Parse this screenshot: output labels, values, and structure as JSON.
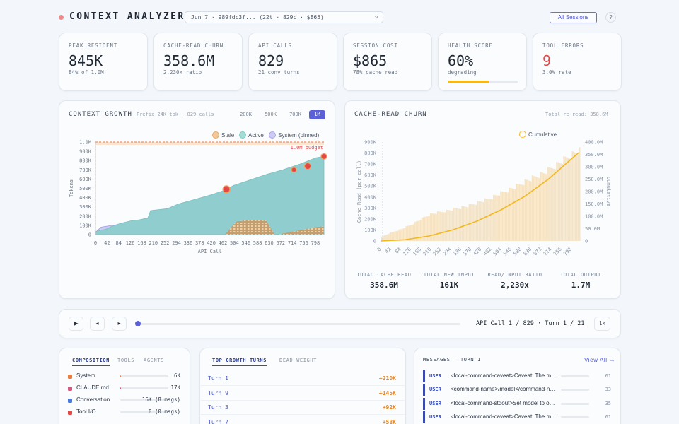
{
  "header": {
    "title": "CONTEXT ANALYZER",
    "session": "Jun 7 · 989fdc3f... (22t · 829c · $865)",
    "all_sessions": "All Sessions",
    "help": "?"
  },
  "stats": [
    {
      "label": "PEAK RESIDENT",
      "value": "845K",
      "sub": "84% of 1.0M"
    },
    {
      "label": "CACHE-READ CHURN",
      "value": "358.6M",
      "sub": "2,230x ratio"
    },
    {
      "label": "API CALLS",
      "value": "829",
      "sub": "21 conv turns"
    },
    {
      "label": "SESSION COST",
      "value": "$865",
      "sub": "78% cache read"
    },
    {
      "label": "HEALTH SCORE",
      "value": "60%",
      "sub": "degrading",
      "progress": 0.6
    },
    {
      "label": "TOOL ERRORS",
      "value": "9",
      "sub": "3.0% rate"
    }
  ],
  "colors": {
    "accent": "#5b5fd8",
    "active_area": "#8ccbcf",
    "stale": "#f2c79a",
    "system": "#b8b6ef",
    "cumulative": "#f2b81e",
    "budget": "#f07a3a",
    "error_dot": "#e24848",
    "churn_bar": "#f6e3c3"
  },
  "context_growth": {
    "title": "CONTEXT GROWTH",
    "subtitle": "Prefix 24K tok · 829 calls",
    "zoom_options": [
      "200K",
      "500K",
      "700K",
      "1M"
    ],
    "zoom_selected": "1M",
    "legend": [
      "Stale",
      "Active",
      "System (pinned)"
    ],
    "budget_label": "1.0M budget"
  },
  "cache_churn": {
    "title": "CACHE-READ CHURN",
    "subtitle": "Total re-read: 358.6M",
    "legend": "Cumulative",
    "totals": [
      {
        "label": "TOTAL CACHE READ",
        "value": "358.6M"
      },
      {
        "label": "TOTAL NEW INPUT",
        "value": "161K"
      },
      {
        "label": "READ/INPUT RATIO",
        "value": "2,230x"
      },
      {
        "label": "TOTAL OUTPUT",
        "value": "1.7M"
      }
    ]
  },
  "chart_data": [
    {
      "type": "area",
      "title": "CONTEXT GROWTH",
      "xlabel": "API Call",
      "ylabel": "Tokens",
      "x_ticks": [
        0,
        42,
        84,
        126,
        168,
        210,
        252,
        294,
        336,
        378,
        420,
        462,
        504,
        546,
        588,
        630,
        672,
        714,
        756,
        798
      ],
      "y_ticks": [
        "0",
        "100K",
        "200K",
        "300K",
        "400K",
        "500K",
        "600K",
        "700K",
        "800K",
        "900K",
        "1.0M"
      ],
      "ylim": [
        0,
        1000000
      ],
      "xlim": [
        0,
        829
      ],
      "budget": 1000000,
      "active": {
        "x": [
          0,
          10,
          40,
          60,
          90,
          130,
          160,
          190,
          200,
          260,
          300,
          360,
          420,
          470,
          500,
          560,
          620,
          680,
          740,
          800,
          829
        ],
        "y": [
          30000,
          40000,
          60000,
          90000,
          120000,
          150000,
          160000,
          180000,
          260000,
          280000,
          330000,
          380000,
          430000,
          480000,
          530000,
          590000,
          650000,
          700000,
          760000,
          830000,
          845000
        ]
      },
      "system": {
        "x": [
          0,
          20,
          60,
          120,
          200,
          829
        ],
        "y": [
          24000,
          80000,
          100000,
          120000,
          150000,
          150000
        ]
      },
      "stale": {
        "x": [
          470,
          510,
          560,
          620,
          650,
          660,
          800,
          829
        ],
        "y": [
          0,
          140000,
          160000,
          150000,
          0,
          0,
          80000,
          90000
        ]
      },
      "error_points": {
        "x": [
          475,
          720,
          770,
          829
        ],
        "y": [
          490000,
          700000,
          740000,
          845000
        ]
      }
    },
    {
      "type": "bar",
      "title": "CACHE-READ CHURN",
      "ylabel": "Cache Read (per call)",
      "y2label": "Cumulative",
      "x_ticks": [
        0,
        42,
        84,
        126,
        168,
        210,
        252,
        294,
        336,
        378,
        420,
        462,
        504,
        546,
        588,
        630,
        672,
        714,
        756,
        798
      ],
      "y_ticks": [
        "0",
        "100K",
        "200K",
        "300K",
        "400K",
        "500K",
        "600K",
        "700K",
        "800K",
        "900K"
      ],
      "y2_ticks": [
        "0",
        "50.0M",
        "100.0M",
        "150.0M",
        "200.0M",
        "250.0M",
        "300.0M",
        "350.0M",
        "400.0M"
      ],
      "ylim": [
        0,
        900000
      ],
      "y2lim": [
        0,
        400000000
      ],
      "per_call": {
        "x": [
          0,
          40,
          80,
          120,
          160,
          200,
          240,
          280,
          320,
          360,
          400,
          440,
          480,
          520,
          560,
          600,
          640,
          680,
          720,
          760,
          800,
          829
        ],
        "y": [
          40000,
          80000,
          110000,
          150000,
          200000,
          250000,
          270000,
          290000,
          310000,
          330000,
          360000,
          390000,
          430000,
          470000,
          510000,
          560000,
          600000,
          640000,
          700000,
          760000,
          820000,
          845000
        ]
      },
      "cumulative": {
        "x": [
          0,
          100,
          200,
          300,
          400,
          500,
          600,
          700,
          800,
          829
        ],
        "y": [
          0,
          5000000,
          20000000,
          45000000,
          80000000,
          125000000,
          180000000,
          250000000,
          335000000,
          358600000
        ]
      }
    }
  ],
  "playback": {
    "status": "API Call 1 / 829 · Turn 1 / 21",
    "speed": "1x",
    "position": 0.0012
  },
  "composition": {
    "tabs": [
      "COMPOSITION",
      "TOOLS",
      "AGENTS"
    ],
    "rows": [
      {
        "name": "System",
        "value": "6K",
        "color": "#f07a3a",
        "fill": 0.01
      },
      {
        "name": "CLAUDE.md",
        "value": "17K",
        "color": "#d6577f",
        "fill": 0.02
      },
      {
        "name": "Conversation",
        "value": "16K (8 msgs)",
        "color": "#4a78e0",
        "fill": 0.0
      },
      {
        "name": "Tool I/O",
        "value": "0 (0 msgs)",
        "color": "#e24848",
        "fill": 0.0
      }
    ]
  },
  "growth_turns": {
    "tabs": [
      "TOP GROWTH TURNS",
      "DEAD WEIGHT"
    ],
    "rows": [
      {
        "turn": "Turn 1",
        "value": "+210K"
      },
      {
        "turn": "Turn 9",
        "value": "+145K"
      },
      {
        "turn": "Turn 3",
        "value": "+92K"
      },
      {
        "turn": "Turn 7",
        "value": "+58K"
      }
    ]
  },
  "messages": {
    "title": "MESSAGES — TURN 1",
    "view_all": "View All →",
    "rows": [
      {
        "role": "USER",
        "text": "<local-command-caveat>Caveat: The messages below were generated by the user",
        "tokens": "61"
      },
      {
        "role": "USER",
        "text": "<command-name>/model</command-name>",
        "tokens": "33"
      },
      {
        "role": "USER",
        "text": "<local-command-stdout>Set model to opus</local-command-stdout>",
        "tokens": "35"
      },
      {
        "role": "USER",
        "text": "<local-command-caveat>Caveat: The messages below were generated by the user",
        "tokens": "61"
      }
    ]
  }
}
